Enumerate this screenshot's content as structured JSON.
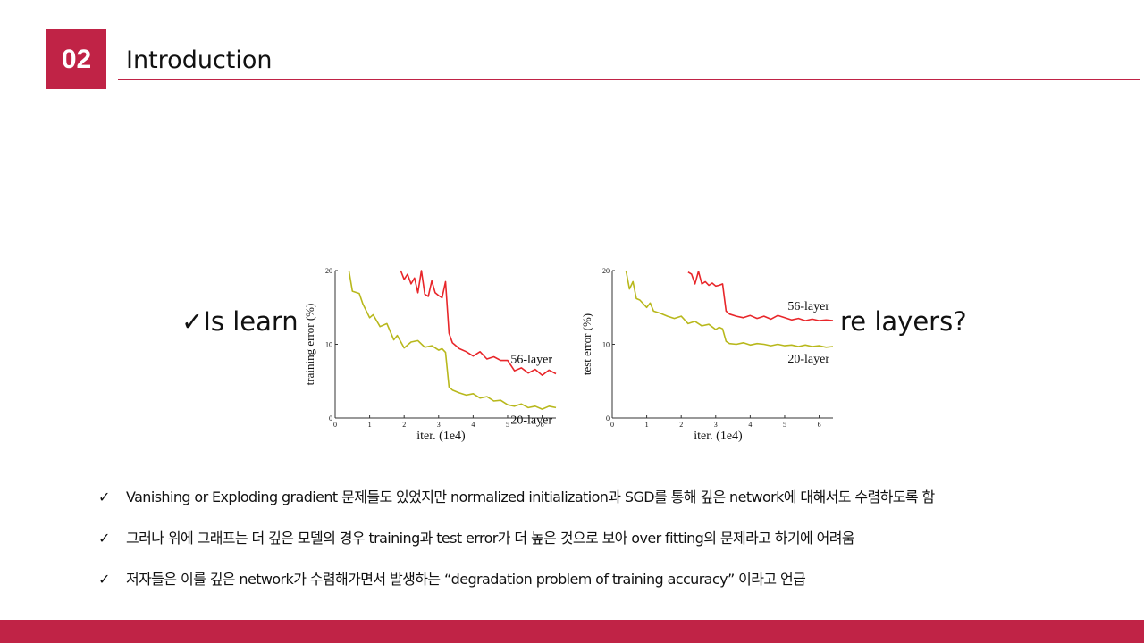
{
  "header": {
    "section_number": "02",
    "title": "Introduction"
  },
  "question": {
    "check": "✓",
    "text_left": "Is learni",
    "text_right": "re layers?"
  },
  "bullets": [
    {
      "check": "✓",
      "text": "Vanishing or Exploding gradient 문제들도 있었지만 normalized initialization과 SGD를 통해 깊은 network에 대해서도 수렴하도록 함"
    },
    {
      "check": "✓",
      "text": "그러나 위에 그래프는 더 깊은 모델의 경우 training과 test error가 더 높은 것으로 보아 over fitting의 문제라고 하기에 어려움"
    },
    {
      "check": "✓",
      "text": "저자들은 이를 깊은 network가 수렴해가면서 발생하는 “degradation problem of training accuracy” 이라고 언급"
    }
  ],
  "colors": {
    "accent": "#c02346",
    "series_56": "#e8262a",
    "series_20": "#b8b81c"
  },
  "chart_data": [
    {
      "type": "line",
      "xlabel": "iter. (1e4)",
      "ylabel": "training error (%)",
      "xlim": [
        0,
        6.4
      ],
      "ylim": [
        0,
        20
      ],
      "xticks": [
        "0",
        "1",
        "2",
        "3",
        "4",
        "5",
        "6"
      ],
      "yticks": [
        "0",
        "10",
        "20"
      ],
      "series": [
        {
          "name": "56-layer",
          "x": [
            1.9,
            2.0,
            2.1,
            2.2,
            2.3,
            2.4,
            2.5,
            2.6,
            2.7,
            2.8,
            2.9,
            3.0,
            3.1,
            3.2,
            3.3,
            3.4,
            3.6,
            3.8,
            4.0,
            4.2,
            4.4,
            4.6,
            4.8,
            5.0,
            5.2,
            5.4,
            5.6,
            5.8,
            6.0,
            6.2,
            6.4
          ],
          "values": [
            20,
            18.8,
            19.5,
            18.2,
            19.0,
            17.0,
            20.0,
            16.8,
            16.5,
            18.6,
            17.0,
            16.6,
            16.3,
            18.5,
            11.5,
            10.2,
            9.4,
            9.0,
            8.4,
            9.0,
            8.0,
            8.3,
            7.8,
            7.8,
            6.4,
            6.8,
            6.1,
            6.6,
            5.8,
            6.5,
            6.0
          ]
        },
        {
          "name": "20-layer",
          "x": [
            0.4,
            0.5,
            0.7,
            0.8,
            1.0,
            1.1,
            1.3,
            1.5,
            1.7,
            1.8,
            2.0,
            2.2,
            2.4,
            2.6,
            2.8,
            3.0,
            3.1,
            3.2,
            3.3,
            3.4,
            3.6,
            3.8,
            4.0,
            4.2,
            4.4,
            4.6,
            4.8,
            5.0,
            5.2,
            5.4,
            5.6,
            5.8,
            6.0,
            6.2,
            6.4
          ],
          "values": [
            20,
            17.2,
            16.9,
            15.5,
            13.6,
            14.0,
            12.4,
            12.8,
            10.6,
            11.2,
            9.5,
            10.3,
            10.5,
            9.6,
            9.8,
            9.2,
            9.4,
            8.9,
            4.2,
            3.8,
            3.4,
            3.1,
            3.3,
            2.7,
            2.9,
            2.3,
            2.4,
            1.8,
            1.6,
            1.9,
            1.4,
            1.6,
            1.2,
            1.6,
            1.4
          ]
        }
      ]
    },
    {
      "type": "line",
      "xlabel": "iter. (1e4)",
      "ylabel": "test error (%)",
      "xlim": [
        0,
        6.4
      ],
      "ylim": [
        0,
        20
      ],
      "xticks": [
        "0",
        "1",
        "2",
        "3",
        "4",
        "5",
        "6"
      ],
      "yticks": [
        "0",
        "10",
        "20"
      ],
      "series": [
        {
          "name": "56-layer",
          "x": [
            2.2,
            2.3,
            2.4,
            2.5,
            2.6,
            2.7,
            2.8,
            2.9,
            3.0,
            3.1,
            3.2,
            3.3,
            3.4,
            3.6,
            3.8,
            4.0,
            4.2,
            4.4,
            4.6,
            4.8,
            5.0,
            5.2,
            5.4,
            5.6,
            5.8,
            6.0,
            6.2,
            6.4
          ],
          "values": [
            19.8,
            19.5,
            18.2,
            19.9,
            18.2,
            18.5,
            18.0,
            18.3,
            17.9,
            18.0,
            18.2,
            14.5,
            14.1,
            13.8,
            13.6,
            13.9,
            13.5,
            13.8,
            13.4,
            13.9,
            13.6,
            13.3,
            13.5,
            13.2,
            13.4,
            13.2,
            13.3,
            13.2
          ]
        },
        {
          "name": "20-layer",
          "x": [
            0.4,
            0.5,
            0.6,
            0.7,
            0.8,
            1.0,
            1.1,
            1.2,
            1.4,
            1.6,
            1.8,
            2.0,
            2.2,
            2.4,
            2.6,
            2.8,
            3.0,
            3.1,
            3.2,
            3.3,
            3.4,
            3.6,
            3.8,
            4.0,
            4.2,
            4.4,
            4.6,
            4.8,
            5.0,
            5.2,
            5.4,
            5.6,
            5.8,
            6.0,
            6.2,
            6.4
          ],
          "values": [
            20,
            17.5,
            18.5,
            16.2,
            16.0,
            15.0,
            15.6,
            14.5,
            14.2,
            13.8,
            13.5,
            13.8,
            12.8,
            13.1,
            12.5,
            12.7,
            12.0,
            12.3,
            12.1,
            10.4,
            10.1,
            10.0,
            10.2,
            9.9,
            10.1,
            10.0,
            9.8,
            10.0,
            9.8,
            9.9,
            9.7,
            9.9,
            9.7,
            9.8,
            9.6,
            9.7
          ]
        }
      ]
    }
  ]
}
